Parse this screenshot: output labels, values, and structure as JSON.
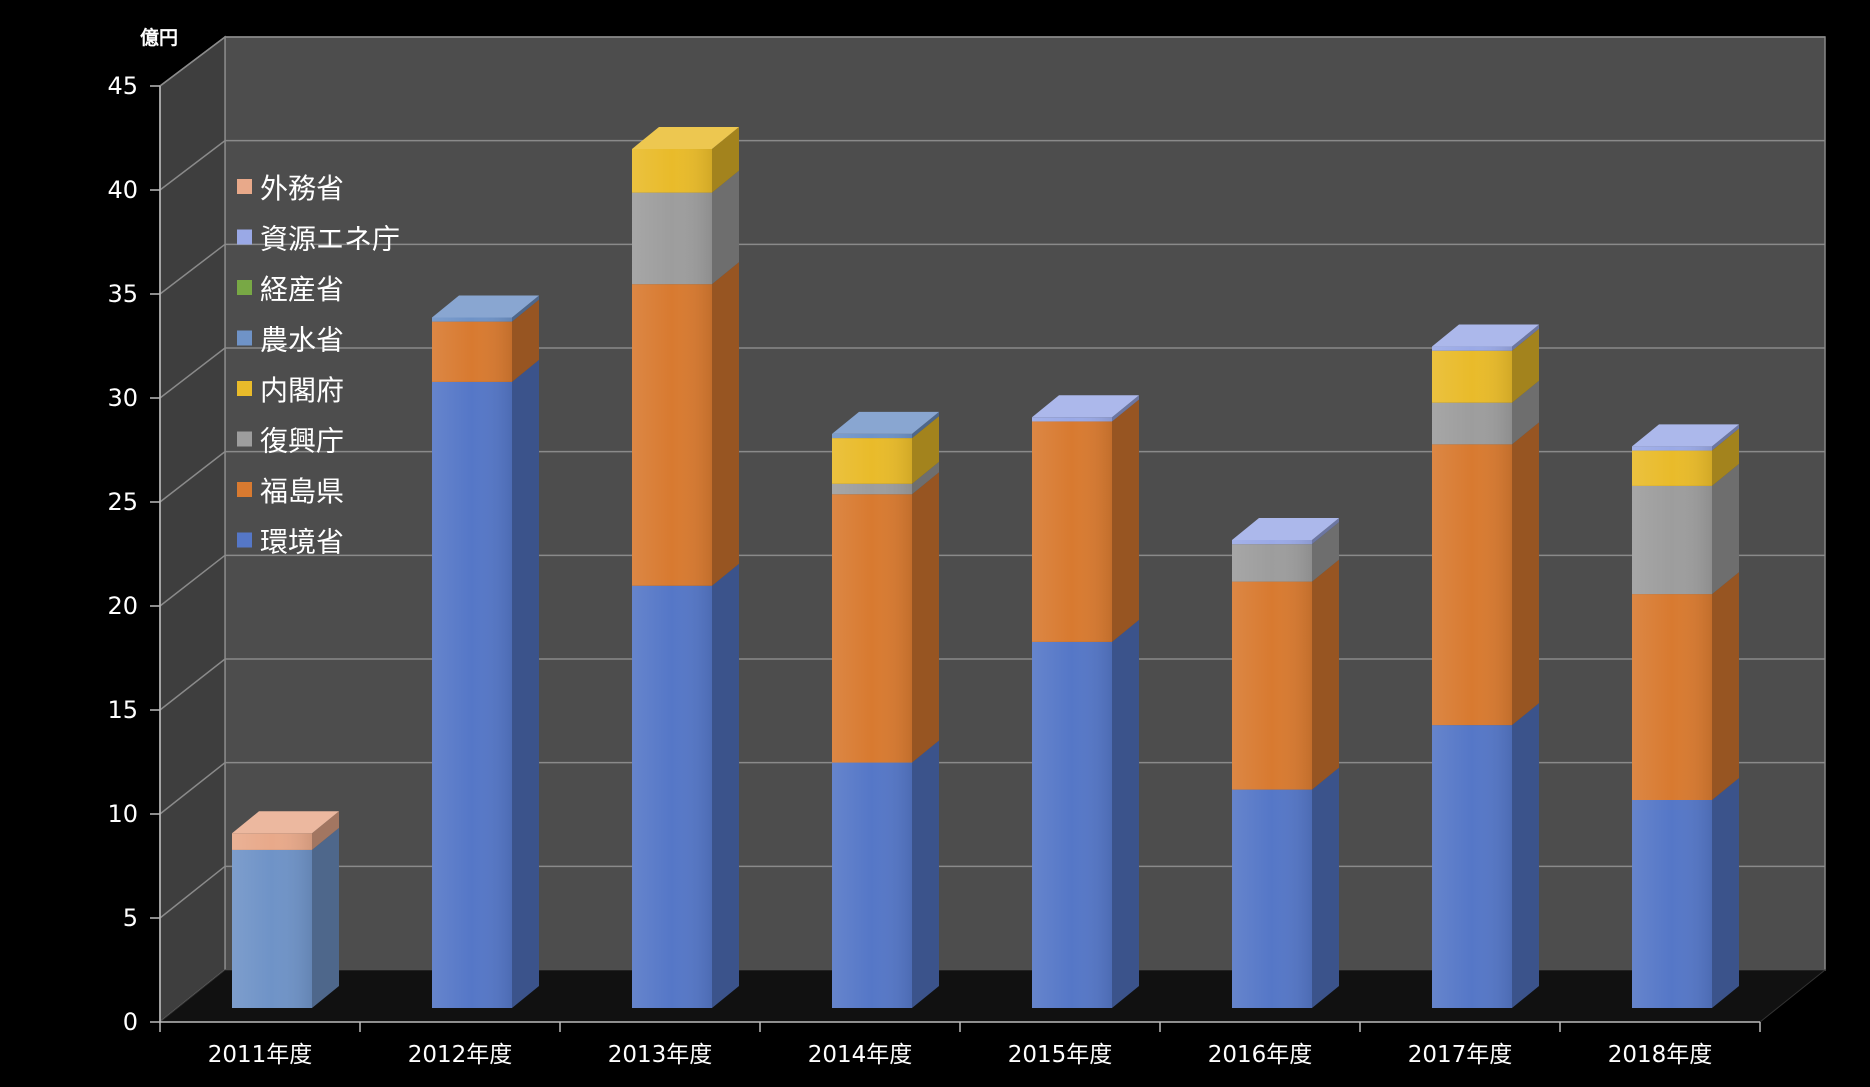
{
  "chart_data": {
    "type": "bar",
    "stacked": true,
    "unit_label": "億円",
    "title": "",
    "xlabel": "",
    "ylabel": "",
    "ylim": [
      0,
      45
    ],
    "yticks": [
      0,
      5,
      10,
      15,
      20,
      25,
      30,
      35,
      40,
      45
    ],
    "grid": true,
    "legend_position": "top-left",
    "categories": [
      "2011年度",
      "2012年度",
      "2013年度",
      "2014年度",
      "2015年度",
      "2016年度",
      "2017年度",
      "2018年度"
    ],
    "series": [
      {
        "name": "環境省",
        "color": "#5577c7",
        "values": [
          0,
          30.1,
          20.3,
          11.8,
          17.6,
          10.5,
          13.6,
          10.0
        ]
      },
      {
        "name": "福島県",
        "color": "#d87a30",
        "values": [
          0,
          2.9,
          14.5,
          12.9,
          10.6,
          10.0,
          13.5,
          9.9
        ]
      },
      {
        "name": "復興庁",
        "color": "#9d9d9d",
        "values": [
          0,
          0,
          4.4,
          0.5,
          0,
          1.8,
          2.0,
          5.2
        ]
      },
      {
        "name": "内閣府",
        "color": "#e9bb2a",
        "values": [
          0,
          0,
          2.1,
          2.2,
          0,
          0,
          2.5,
          1.7
        ]
      },
      {
        "name": "農水省",
        "color": "#6f93c7",
        "values": [
          7.6,
          0.2,
          0,
          0.2,
          0,
          0,
          0,
          0
        ]
      },
      {
        "name": "経産省",
        "color": "#78a845",
        "values": [
          0,
          0,
          0,
          0,
          0,
          0,
          0,
          0
        ]
      },
      {
        "name": "資源エネ庁",
        "color": "#9aa9e6",
        "values": [
          0,
          0,
          0,
          0,
          0.2,
          0.2,
          0.2,
          0.2
        ]
      },
      {
        "name": "外務省",
        "color": "#e8a98a",
        "values": [
          0.8,
          0,
          0,
          0,
          0,
          0,
          0,
          0
        ]
      }
    ]
  }
}
